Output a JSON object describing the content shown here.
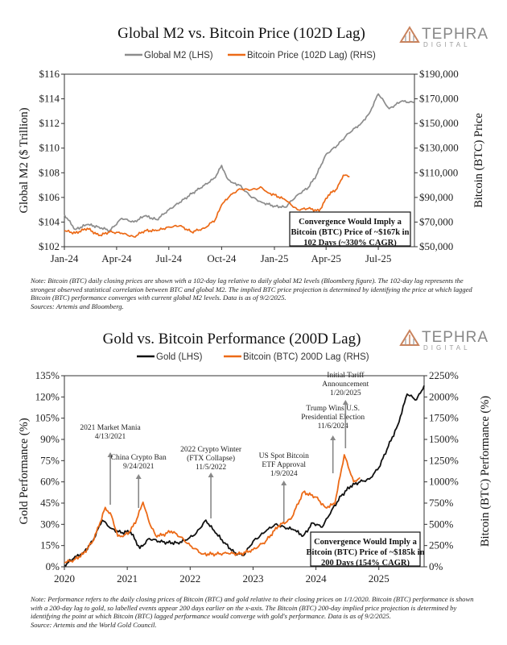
{
  "brand": {
    "name": "TEPHRA",
    "sub": "DIGITAL",
    "colors": {
      "mark": "#c9825c",
      "text": "#888888"
    }
  },
  "chart_data": [
    {
      "type": "line",
      "title": "Global M2 vs. Bitcoin Price (102D Lag)",
      "legend": {
        "placement": "top",
        "entries": [
          "Global M2 (LHS)",
          "Bitcoin Price (102D Lag) (RHS)"
        ]
      },
      "ylabel_left": "Global M2 ($ Trillion)",
      "ylabel_right": "Bitcoin (BTC) Price",
      "x_ticks": [
        "Jan-24",
        "Apr-24",
        "Jul-24",
        "Oct-24",
        "Jan-25",
        "Apr-25",
        "Jul-25"
      ],
      "y_left_ticks": [
        "$102",
        "$104",
        "$106",
        "$108",
        "$110",
        "$112",
        "$114",
        "$116"
      ],
      "y_right_ticks": [
        "$50,000",
        "$70,000",
        "$90,000",
        "$110,000",
        "$130,000",
        "$150,000",
        "$170,000",
        "$190,000"
      ],
      "ylim_left": [
        102,
        116
      ],
      "ylim_right": [
        50000,
        190000
      ],
      "x_range": [
        "2024-01-01",
        "2025-09-02"
      ],
      "grid": false,
      "series": [
        {
          "name": "Global M2 (LHS)",
          "axis": "left",
          "color": "#8c8c8c",
          "x": [
            "2024-01-01",
            "2024-01-20",
            "2024-02-10",
            "2024-03-01",
            "2024-03-20",
            "2024-04-10",
            "2024-05-01",
            "2024-05-20",
            "2024-06-10",
            "2024-07-01",
            "2024-07-20",
            "2024-08-10",
            "2024-09-01",
            "2024-09-20",
            "2024-10-01",
            "2024-10-10",
            "2024-10-20",
            "2024-11-01",
            "2024-11-20",
            "2024-12-10",
            "2025-01-01",
            "2025-01-20",
            "2025-02-10",
            "2025-03-01",
            "2025-03-15",
            "2025-04-01",
            "2025-04-20",
            "2025-05-10",
            "2025-06-01",
            "2025-06-15",
            "2025-07-01",
            "2025-07-20",
            "2025-08-10",
            "2025-09-01"
          ],
          "values": [
            104.6,
            103.4,
            103.8,
            103.6,
            103.3,
            104.3,
            104.0,
            104.5,
            104.2,
            105.0,
            105.6,
            106.3,
            107.0,
            107.6,
            108.6,
            107.6,
            107.2,
            107.0,
            106.1,
            105.6,
            105.3,
            105.2,
            106.2,
            106.8,
            107.8,
            109.5,
            110.2,
            111.2,
            112.0,
            112.8,
            114.4,
            113.2,
            113.8,
            113.7
          ]
        },
        {
          "name": "Bitcoin Price (102D Lag) (RHS)",
          "axis": "right",
          "color": "#ec6a17",
          "x": [
            "2024-01-01",
            "2024-01-20",
            "2024-02-10",
            "2024-03-01",
            "2024-03-20",
            "2024-04-10",
            "2024-05-01",
            "2024-05-20",
            "2024-06-10",
            "2024-07-01",
            "2024-07-20",
            "2024-08-10",
            "2024-09-01",
            "2024-09-20",
            "2024-10-01",
            "2024-10-15",
            "2024-11-01",
            "2024-11-20",
            "2024-12-10",
            "2024-12-20",
            "2025-01-01",
            "2025-01-20",
            "2025-02-10",
            "2025-03-01",
            "2025-03-20",
            "2025-04-05",
            "2025-04-20",
            "2025-05-01",
            "2025-05-12"
          ],
          "values": [
            63000,
            61000,
            65000,
            59000,
            62000,
            61000,
            58000,
            63000,
            63000,
            66000,
            67000,
            62000,
            65000,
            72000,
            84000,
            91000,
            97000,
            96000,
            98000,
            94000,
            92000,
            88000,
            80000,
            81000,
            79000,
            92000,
            97000,
            108000,
            107000
          ]
        }
      ],
      "annotation": "Convergence Would Imply a Bitcoin (BTC) Price of ~$167k in 102 Days (~330% CAGR)"
    },
    {
      "type": "line",
      "title": "Gold vs. Bitcoin Performance (200D Lag)",
      "legend": {
        "placement": "top",
        "entries": [
          "Gold (LHS)",
          "Bitcoin (BTC) 200D Lag (RHS)"
        ]
      },
      "ylabel_left": "Gold Performance (%)",
      "ylabel_right": "Bitcoin (BTC) Performance (%)",
      "x_ticks": [
        "2020",
        "2021",
        "2022",
        "2023",
        "2024",
        "2025"
      ],
      "y_left_ticks": [
        "0%",
        "15%",
        "30%",
        "45%",
        "60%",
        "75%",
        "90%",
        "105%",
        "120%",
        "135%"
      ],
      "y_right_ticks": [
        "0%",
        "250%",
        "500%",
        "750%",
        "1000%",
        "1250%",
        "1500%",
        "1750%",
        "2000%",
        "2250%"
      ],
      "ylim_left": [
        0,
        135
      ],
      "ylim_right": [
        0,
        2250
      ],
      "x_range": [
        2020.0,
        2025.72
      ],
      "grid": false,
      "series": [
        {
          "name": "Gold (LHS)",
          "axis": "left",
          "color": "#111111",
          "x": [
            2020.0,
            2020.15,
            2020.3,
            2020.45,
            2020.6,
            2020.75,
            2020.9,
            2021.05,
            2021.2,
            2021.35,
            2021.5,
            2021.65,
            2021.8,
            2021.95,
            2022.1,
            2022.25,
            2022.4,
            2022.55,
            2022.7,
            2022.85,
            2023.0,
            2023.2,
            2023.35,
            2023.5,
            2023.65,
            2023.8,
            2023.95,
            2024.1,
            2024.25,
            2024.4,
            2024.55,
            2024.7,
            2024.85,
            2025.0,
            2025.15,
            2025.3,
            2025.45,
            2025.6,
            2025.72
          ],
          "values": [
            1,
            6,
            10,
            18,
            33,
            27,
            24,
            25,
            13,
            20,
            18,
            17,
            17,
            19,
            24,
            33,
            24,
            17,
            10,
            8,
            18,
            25,
            30,
            28,
            26,
            22,
            31,
            28,
            40,
            50,
            57,
            60,
            62,
            70,
            85,
            100,
            122,
            118,
            128
          ]
        },
        {
          "name": "Bitcoin (BTC) 200D Lag (RHS)",
          "axis": "right",
          "color": "#ec6a17",
          "x": [
            2020.0,
            2020.15,
            2020.3,
            2020.45,
            2020.55,
            2020.65,
            2020.75,
            2020.85,
            2020.95,
            2021.05,
            2021.15,
            2021.25,
            2021.35,
            2021.45,
            2021.55,
            2021.7,
            2021.85,
            2022.0,
            2022.2,
            2022.4,
            2022.6,
            2022.8,
            2023.0,
            2023.2,
            2023.4,
            2023.6,
            2023.8,
            2024.0,
            2024.15,
            2024.3,
            2024.45,
            2024.6,
            2024.7
          ],
          "values": [
            50,
            80,
            150,
            300,
            480,
            700,
            600,
            360,
            370,
            420,
            560,
            760,
            520,
            370,
            370,
            420,
            350,
            250,
            150,
            150,
            160,
            150,
            200,
            300,
            480,
            560,
            880,
            820,
            700,
            740,
            1320,
            1000,
            1050
          ]
        }
      ],
      "events": [
        {
          "label": [
            "2021 Market Mania",
            "4/13/2021"
          ]
        },
        {
          "label": [
            "China Crypto Ban",
            "9/24/2021"
          ]
        },
        {
          "label": [
            "2022 Crypto Winter",
            "(FTX Collapse)",
            "11/5/2022"
          ]
        },
        {
          "label": [
            "US Spot Bitcoin",
            "ETF Approval",
            "1/9/2024"
          ]
        },
        {
          "label": [
            "Trump Wins U.S.",
            "Presidential Election",
            "11/6/2024"
          ]
        },
        {
          "label": [
            "Initial Tariff",
            "Announcement",
            "1/20/2025"
          ]
        }
      ],
      "annotation": "Convergence Would Imply a Bitcoin (BTC) Price of ~$185k in 200 Days (154% CAGR)"
    }
  ],
  "notes": {
    "top": [
      "Note: Bitcoin (BTC) daily closing prices are shown with a 102-day lag relative to daily global M2 levels (Bloomberg figure). The 102-day lag represents the strongest observed statistical correlation between BTC and global M2. The implied BTC price projection is determined by identifying the price at which lagged Bitcoin (BTC) performance converges with current global M2 levels. Data is as of 9/2/2025.",
      "Sources: Artemis and Bloomberg."
    ],
    "bottom": [
      "Note: Performance refers to the daily closing prices of Bitcoin (BTC) and gold relative to their closing prices on 1/1/2020. Bitcoin (BTC) performance is shown with a 200-day lag to gold, so labelled events appear 200 days earlier on the x-axis. The Bitcoin (BTC) 200-day implied price projection is determined by identifying the point at which Bitcoin (BTC) lagged performance would converge with gold's performance. Data is as of 9/2/2025.",
      "Source: Artemis and the World Gold Council."
    ]
  }
}
